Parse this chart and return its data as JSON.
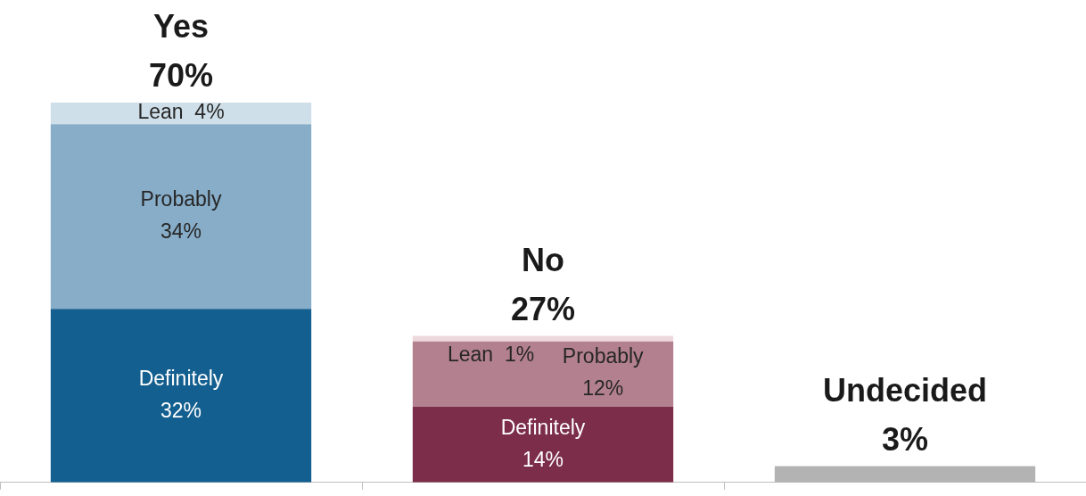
{
  "chart_data": {
    "type": "bar",
    "stacked": true,
    "categories": [
      null,
      null,
      null
    ],
    "series": [
      {
        "colors": [
          "#135f8f",
          "#7c2d4a",
          "#b3b3b3"
        ],
        "values": [
          32,
          14,
          3
        ],
        "value_labels": [
          "Definitely\n32%",
          "Definitely\n14%",
          null
        ]
      },
      {
        "colors": [
          "#87adc8",
          "#b3808f",
          "#b3b3b3"
        ],
        "values": [
          34,
          12,
          null
        ],
        "value_labels": [
          "Probably\n34%",
          "Probably\n12%",
          null
        ]
      },
      {
        "colors": [
          "#cfdfe9",
          "#ecd8dd",
          "#b3b3b3"
        ],
        "values": [
          4,
          1,
          null
        ],
        "value_labels": [
          "Lean  4%",
          "Lean  1%",
          null
        ]
      }
    ],
    "totals": [
      "Yes\n70%",
      "No\n27%",
      "Undecided\n3%"
    ],
    "legend": false
  }
}
